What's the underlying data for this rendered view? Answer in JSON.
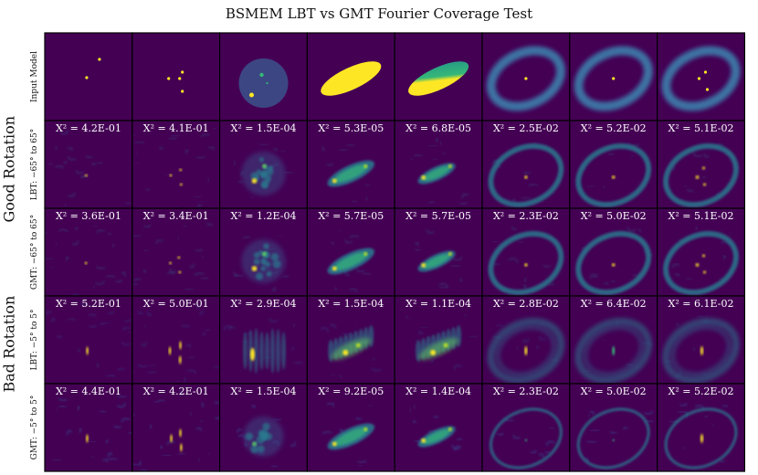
{
  "title": "BSMEM LBT vs GMT Fourier Coverage Test",
  "group_labels": [
    "Good Rotation",
    "Bad Rotation"
  ],
  "row_labels": [
    "Input Model",
    "LBT: −65° to 65°",
    "GMT: −65° to 65°",
    "LBT: −5° to 5°",
    "GMT: −5° to 5°"
  ],
  "colors": {
    "background": "#440154",
    "panel_border": "#000000",
    "bright": "#fde725",
    "mid": "#21918c",
    "faint": "#3b528b"
  },
  "colormap": "viridis",
  "columns": [
    {
      "model": "single point (off-centre)"
    },
    {
      "model": "three points"
    },
    {
      "model": "disk with two points"
    },
    {
      "model": "uniform ellipse"
    },
    {
      "model": "gradient ellipse"
    },
    {
      "model": "ring with point"
    },
    {
      "model": "ring with point"
    },
    {
      "model": "ring with three points"
    }
  ],
  "chart_data": {
    "type": "heatmap",
    "title": "BSMEM LBT vs GMT Fourier Coverage Test",
    "rows": [
      "LBT: −65° to 65°",
      "GMT: −65° to 65°",
      "LBT: −5° to 5°",
      "GMT: −5° to 5°"
    ],
    "chi2_labels": [
      [
        "X² = 4.2E-01",
        "X² = 4.1E-01",
        "X² = 1.5E-04",
        "X² = 5.3E-05",
        "X² = 6.8E-05",
        "X² = 2.5E-02",
        "X² = 5.2E-02",
        "X² = 5.1E-02"
      ],
      [
        "X² = 3.6E-01",
        "X² = 3.4E-01",
        "X² = 1.2E-04",
        "X² = 5.7E-05",
        "X² = 5.7E-05",
        "X² = 2.3E-02",
        "X² = 5.0E-02",
        "X² = 5.1E-02"
      ],
      [
        "X² = 5.2E-01",
        "X² = 5.0E-01",
        "X² = 2.9E-04",
        "X² = 1.5E-04",
        "X² = 1.1E-04",
        "X² = 2.8E-02",
        "X² = 6.4E-02",
        "X² = 6.1E-02"
      ],
      [
        "X² = 4.4E-01",
        "X² = 4.2E-01",
        "X² = 1.5E-04",
        "X² = 9.2E-05",
        "X² = 1.4E-04",
        "X² = 2.3E-02",
        "X² = 5.0E-02",
        "X² = 5.2E-02"
      ]
    ],
    "chi2_values": [
      [
        0.42,
        0.41,
        0.00015,
        5.3e-05,
        6.8e-05,
        0.025,
        0.052,
        0.051
      ],
      [
        0.36,
        0.34,
        0.00012,
        5.7e-05,
        5.7e-05,
        0.023,
        0.05,
        0.051
      ],
      [
        0.52,
        0.5,
        0.00029,
        0.00015,
        0.00011,
        0.028,
        0.064,
        0.061
      ],
      [
        0.44,
        0.42,
        0.00015,
        9.2e-05,
        0.00014,
        0.023,
        0.05,
        0.052
      ]
    ]
  }
}
